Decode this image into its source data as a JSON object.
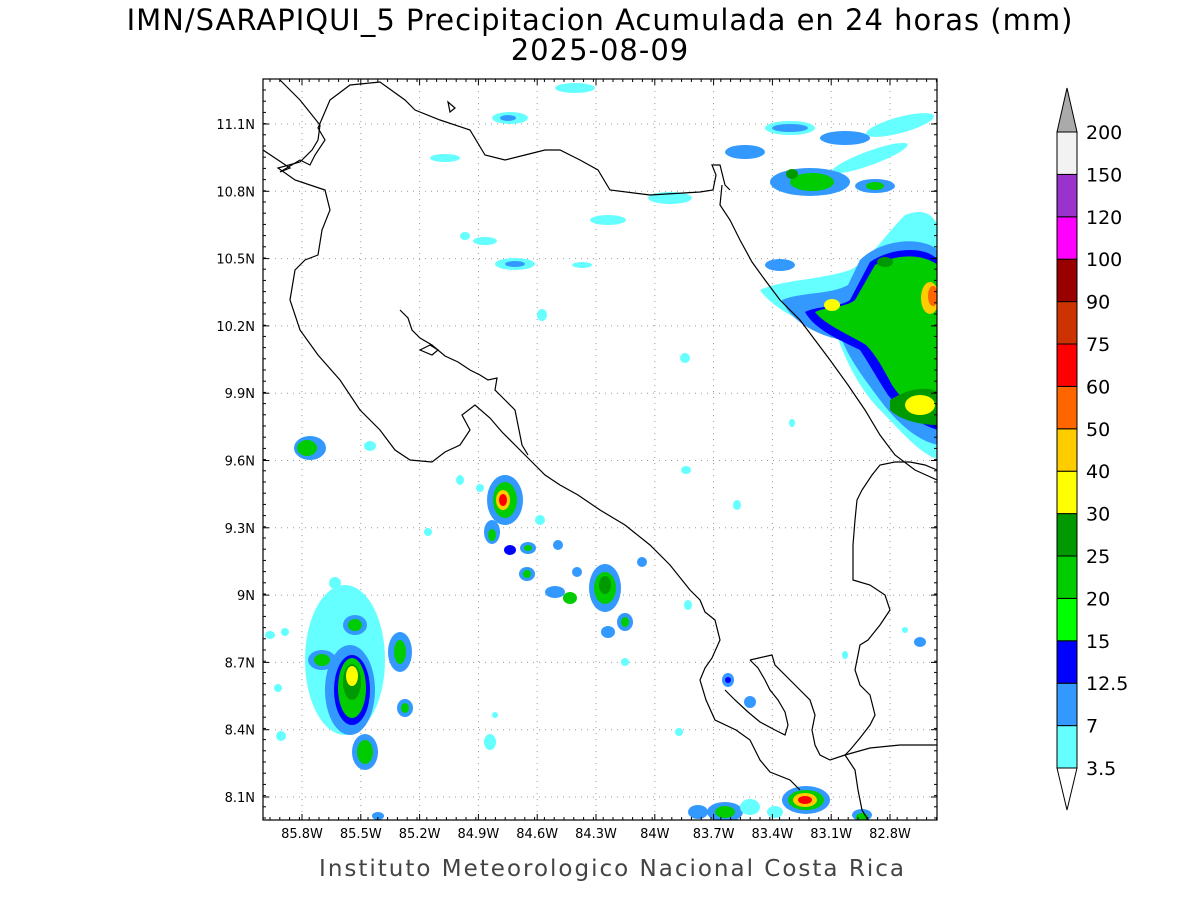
{
  "title": {
    "line1": "IMN/SARAPIQUI_5 Precipitacion Acumulada en 24 horas (mm)",
    "line2": "2025-08-09"
  },
  "credit": "Instituto Meteorologico Nacional Costa Rica",
  "map": {
    "lat_ticks": [
      "11.1N",
      "10.8N",
      "10.5N",
      "10.2N",
      "9.9N",
      "9.6N",
      "9.3N",
      "9N",
      "8.7N",
      "8.4N",
      "8.1N"
    ],
    "lon_ticks": [
      "85.8W",
      "85.5W",
      "85.2W",
      "84.9W",
      "84.6W",
      "84.3W",
      "84W",
      "83.7W",
      "83.4W",
      "83.1W",
      "82.8W"
    ],
    "grid": "dotted"
  },
  "legend": {
    "levels": [
      "3.5",
      "7",
      "12.5",
      "15",
      "20",
      "25",
      "30",
      "40",
      "50",
      "60",
      "75",
      "90",
      "100",
      "120",
      "150",
      "200"
    ],
    "colors": [
      "#66ffff",
      "#3399ff",
      "#0000ff",
      "#00ff00",
      "#00cc00",
      "#009900",
      "#ffff00",
      "#ffcc00",
      "#ff6600",
      "#ff0000",
      "#cc3300",
      "#990000",
      "#ff00ff",
      "#9933cc",
      "#f2f2f2",
      "#aaaaaa"
    ]
  }
}
